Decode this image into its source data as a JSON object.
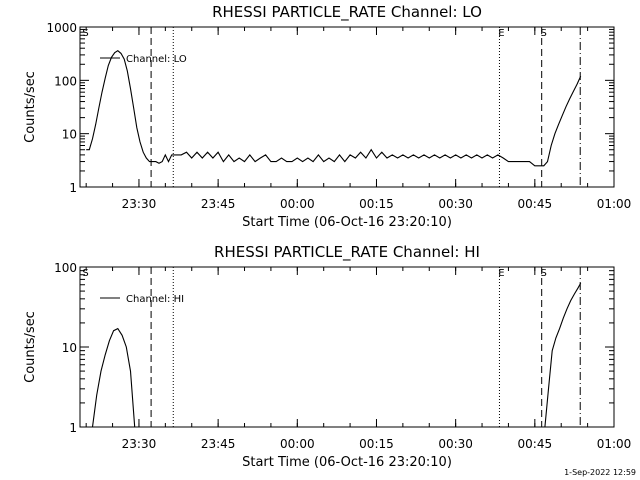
{
  "footer": {
    "timestamp": "1-Sep-2022 12:59"
  },
  "chart_data": [
    {
      "type": "line",
      "title": "RHESSI PARTICLE_RATE Channel: LO",
      "xlabel": "Start Time (06-Oct-16 23:20:10)",
      "ylabel": "Counts/sec",
      "yscale": "log",
      "ylim": [
        1,
        1000
      ],
      "xlim_minutes": [
        -0.17,
        60.0
      ],
      "x_ticks": [
        {
          "t": 10,
          "label": "23:30"
        },
        {
          "t": 25,
          "label": "23:45"
        },
        {
          "t": 40,
          "label": "00:00"
        },
        {
          "t": 55,
          "label": "00:15"
        },
        {
          "t": 70,
          "label": "00:30"
        },
        {
          "t": 85,
          "label": "00:45"
        },
        {
          "t": 100,
          "label": "01:00"
        }
      ],
      "y_ticks": [
        {
          "v": 1,
          "label": "1"
        },
        {
          "v": 10,
          "label": "10"
        },
        {
          "v": 100,
          "label": "100"
        },
        {
          "v": 1000,
          "label": "1000"
        }
      ],
      "legend": {
        "position": "top-left",
        "entries": [
          "Channel: LO"
        ]
      },
      "markers": [
        {
          "t": -0.5,
          "label": "S",
          "style": "none"
        },
        {
          "t": 12.3,
          "label": "",
          "style": "dashed"
        },
        {
          "t": 16.5,
          "label": "",
          "style": "dotted"
        },
        {
          "t": 78.3,
          "label": "E",
          "style": "dotted"
        },
        {
          "t": 86.3,
          "label": "S",
          "style": "dashed"
        },
        {
          "t": 93.6,
          "label": "",
          "style": "dashdot"
        }
      ],
      "series": [
        {
          "x": [
            0,
            0.6,
            1.2,
            1.8,
            2.4,
            3.0,
            3.6,
            4.2,
            4.8,
            5.4,
            6.0,
            6.6,
            7.2,
            7.8,
            8.4,
            9.0,
            9.6,
            10.2,
            10.8,
            11.4,
            12.0,
            12.6,
            13.2,
            13.8,
            14.4,
            15.0,
            15.6,
            16.2,
            17,
            18,
            19,
            20,
            21,
            22,
            23,
            24,
            25,
            26,
            27,
            28,
            29,
            30,
            31,
            32,
            33,
            34,
            35,
            36,
            37,
            38,
            39,
            40,
            41,
            42,
            43,
            44,
            45,
            46,
            47,
            48,
            49,
            50,
            51,
            52,
            53,
            54,
            55,
            56,
            57,
            58,
            59,
            60,
            61,
            62,
            63,
            64,
            65,
            66,
            67,
            68,
            69,
            70,
            71,
            72,
            73,
            74,
            75,
            76,
            77,
            78,
            79,
            80,
            81,
            82,
            83,
            84,
            85,
            86,
            86.7,
            87.4,
            88.1,
            88.8,
            89.5,
            90.2,
            90.9,
            91.6,
            92.3,
            93.0,
            93.7
          ],
          "values": [
            5,
            5,
            8,
            15,
            30,
            60,
            110,
            190,
            270,
            330,
            360,
            320,
            250,
            150,
            70,
            30,
            13,
            7,
            4.5,
            3.5,
            3,
            3,
            3,
            2.8,
            3,
            4,
            3,
            4,
            4,
            4,
            4.5,
            3.5,
            4.5,
            3.5,
            4.5,
            3.5,
            4.5,
            3,
            4,
            3,
            3.5,
            3,
            4,
            3,
            3.5,
            4,
            3,
            3,
            3.5,
            3,
            3,
            3.5,
            3,
            3.5,
            3,
            4,
            3,
            3.5,
            3,
            4,
            3,
            4,
            3.5,
            4.5,
            3.5,
            5,
            3.5,
            4.5,
            3.5,
            4,
            3.5,
            4,
            3.5,
            4,
            3.5,
            4,
            3.5,
            4,
            3.5,
            4,
            3.5,
            4,
            3.5,
            4,
            3.5,
            4,
            3.5,
            4,
            3.5,
            4,
            3.5,
            3,
            3,
            3,
            3,
            3,
            2.5,
            2.5,
            2.5,
            3,
            6,
            10,
            15,
            22,
            32,
            45,
            62,
            85,
            120
          ]
        }
      ]
    },
    {
      "type": "line",
      "title": "RHESSI PARTICLE_RATE Channel: HI",
      "xlabel": "Start Time (06-Oct-16 23:20:10)",
      "ylabel": "Counts/sec",
      "yscale": "log",
      "ylim": [
        1,
        100
      ],
      "xlim_minutes": [
        -0.17,
        60.0
      ],
      "x_ticks": [
        {
          "t": 10,
          "label": "23:30"
        },
        {
          "t": 25,
          "label": "23:45"
        },
        {
          "t": 40,
          "label": "00:00"
        },
        {
          "t": 55,
          "label": "00:15"
        },
        {
          "t": 70,
          "label": "00:30"
        },
        {
          "t": 85,
          "label": "00:45"
        },
        {
          "t": 100,
          "label": "01:00"
        }
      ],
      "y_ticks": [
        {
          "v": 1,
          "label": "1"
        },
        {
          "v": 10,
          "label": "10"
        },
        {
          "v": 100,
          "label": "100"
        }
      ],
      "legend": {
        "position": "top-left",
        "entries": [
          "Channel: HI"
        ]
      },
      "markers": [
        {
          "t": -0.5,
          "label": "S",
          "style": "none"
        },
        {
          "t": 12.3,
          "label": "",
          "style": "dashed"
        },
        {
          "t": 16.5,
          "label": "",
          "style": "dotted"
        },
        {
          "t": 78.3,
          "label": "E",
          "style": "dotted"
        },
        {
          "t": 86.3,
          "label": "S",
          "style": "dashed"
        },
        {
          "t": 93.6,
          "label": "",
          "style": "dashdot"
        }
      ],
      "series": [
        {
          "x": [
            1.2,
            2.0,
            2.8,
            3.6,
            4.4,
            5.2,
            6.0,
            6.8,
            7.6,
            8.4,
            9.2,
            86.9,
            87.6,
            88.3,
            89.0,
            89.7,
            90.4,
            91.1,
            91.8,
            92.5,
            93.2,
            93.7
          ],
          "values": [
            1,
            2.5,
            5,
            8,
            12,
            16,
            17,
            14,
            10,
            5,
            1,
            1,
            3,
            9,
            13,
            17,
            23,
            30,
            38,
            46,
            55,
            63
          ]
        }
      ]
    }
  ]
}
